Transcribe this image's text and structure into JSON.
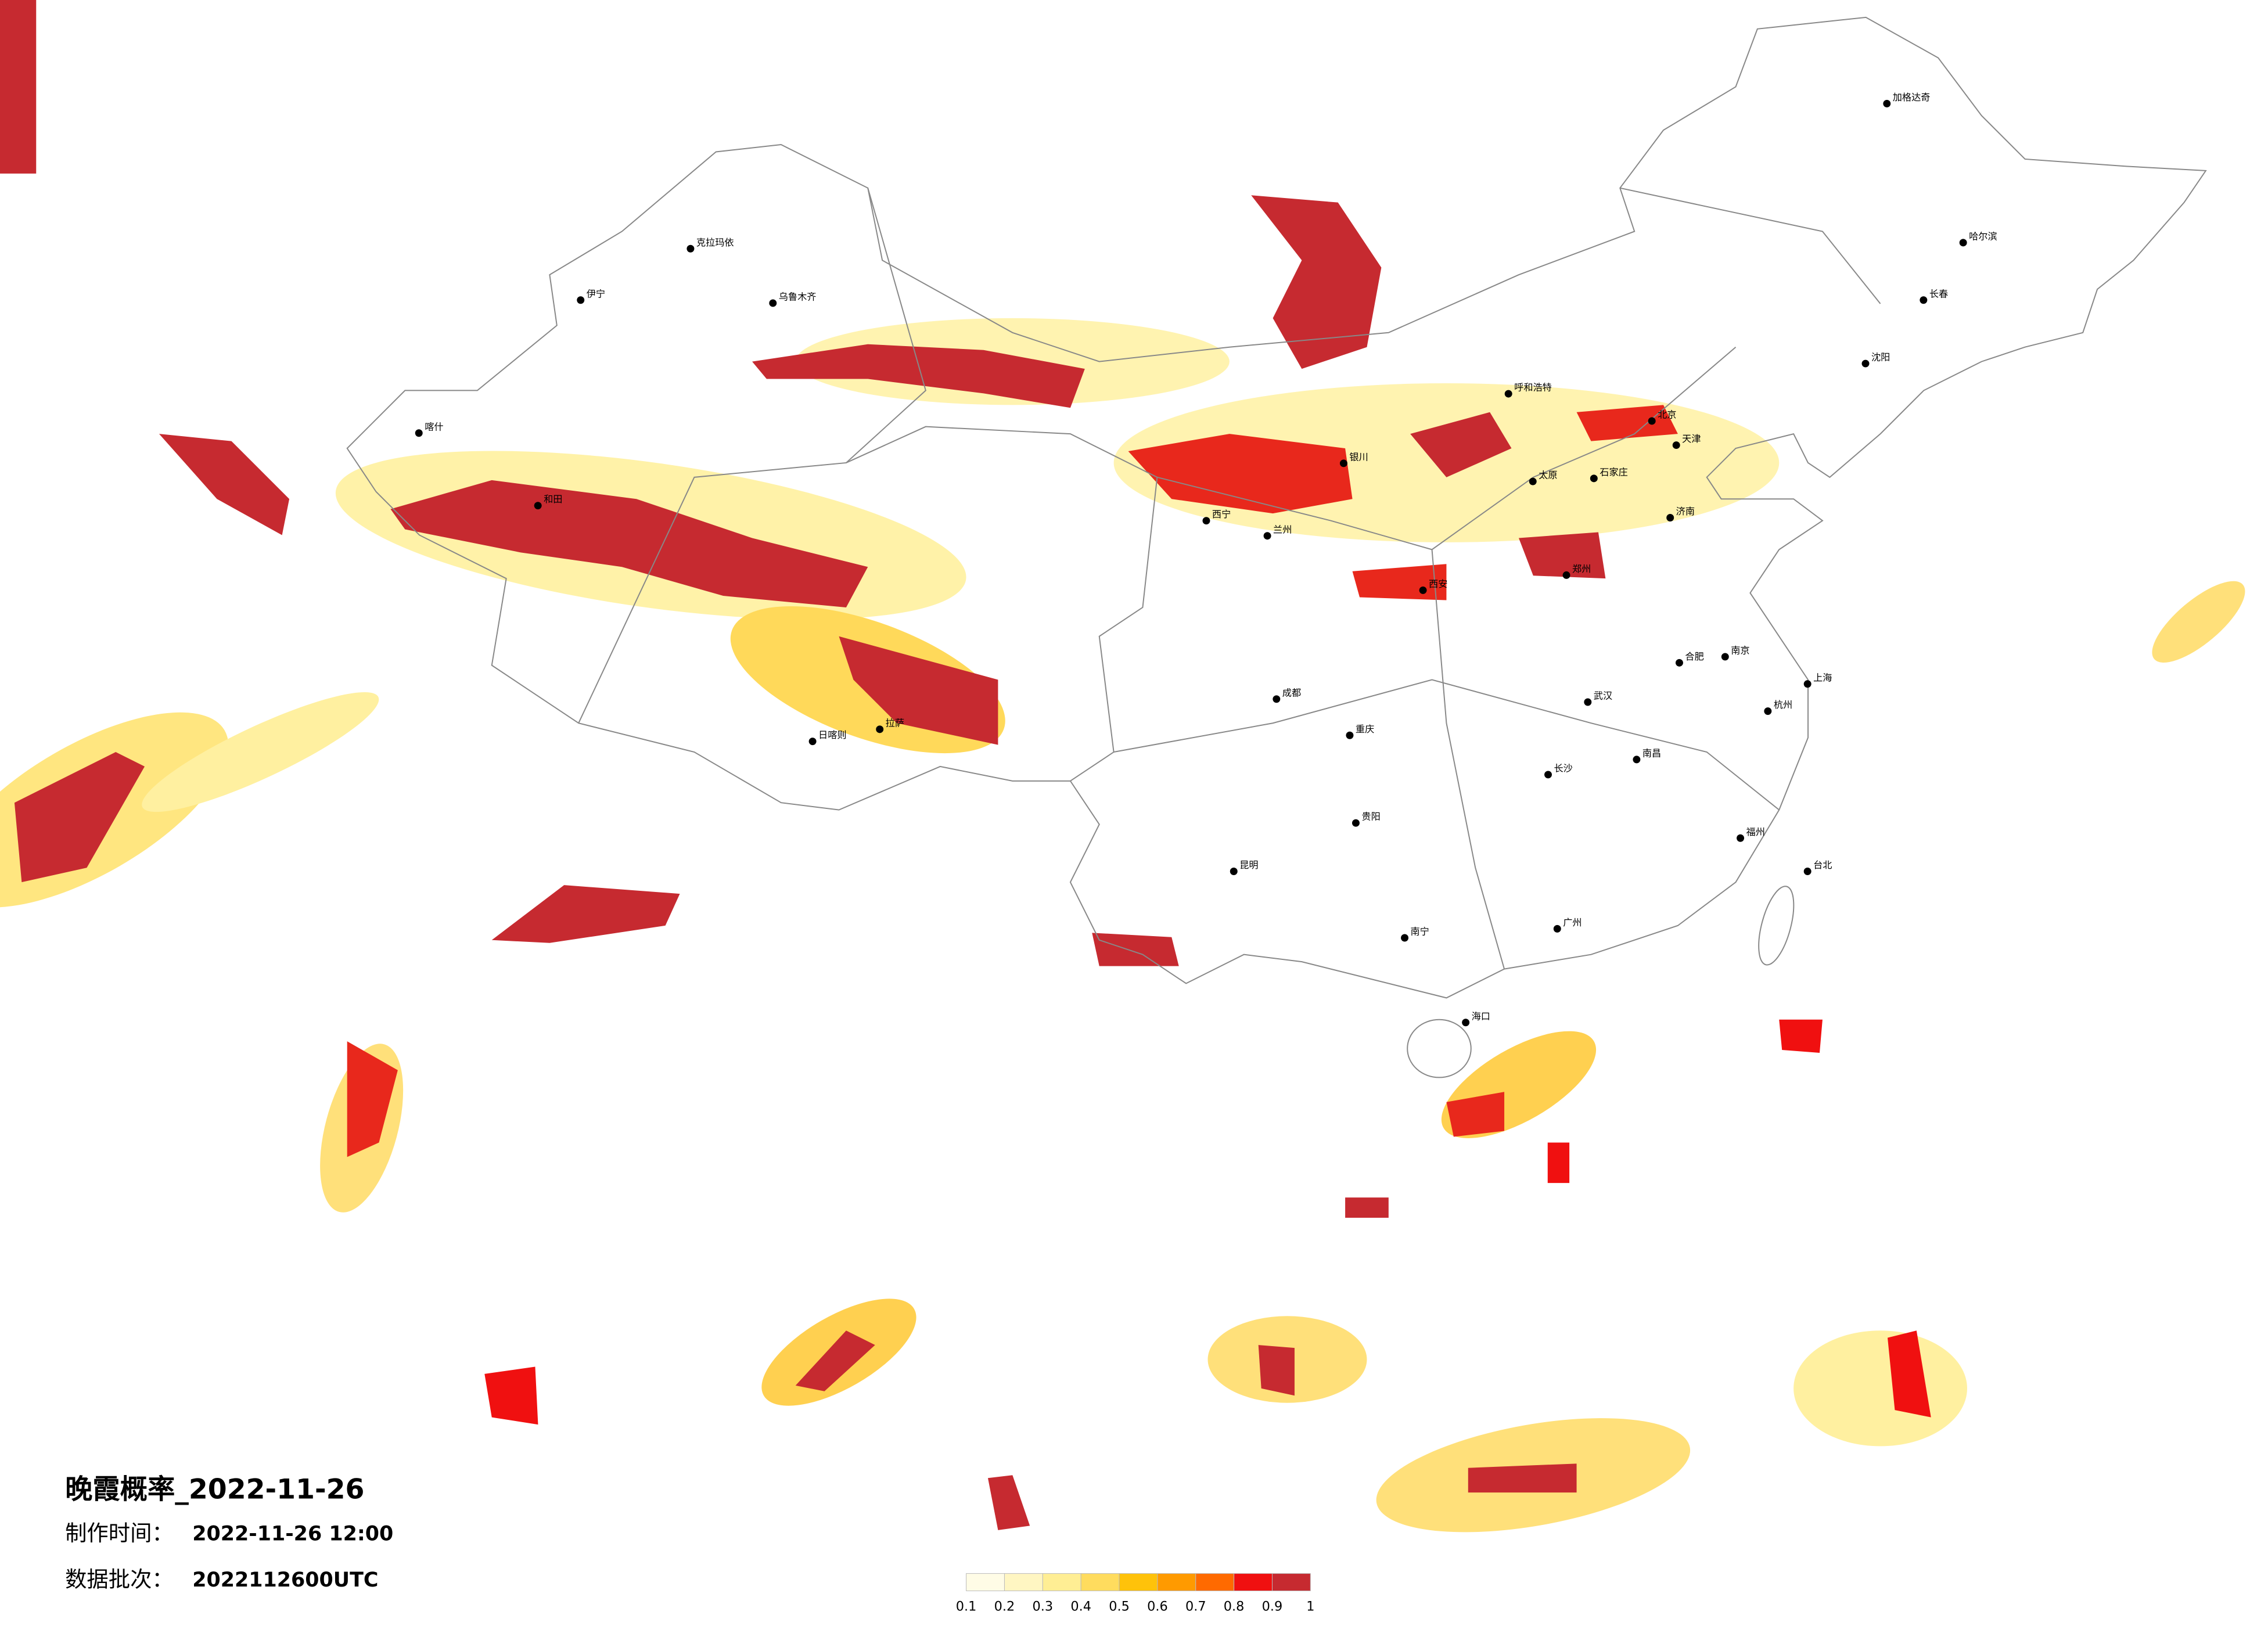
{
  "header": {
    "title": "晚霞概率_2022-11-26",
    "production_time_label": "制作时间：",
    "production_time": "2022-11-26 12:00",
    "batch_label": "数据批次：",
    "batch": "2022112600UTC"
  },
  "legend": {
    "ticks": [
      0.1,
      0.2,
      0.3,
      0.4,
      0.5,
      0.6,
      0.7,
      0.8,
      0.9,
      1
    ],
    "colors": [
      "#fffce6",
      "#fff6c2",
      "#ffee94",
      "#ffdc5e",
      "#ffc20a",
      "#ff9a00",
      "#ff6a00",
      "#f01010",
      "#c62a30"
    ]
  },
  "cities": [
    {
      "name": "乌鲁木齐",
      "lon": 87.6,
      "lat": 43.8
    },
    {
      "name": "克拉玛依",
      "lon": 84.9,
      "lat": 45.6
    },
    {
      "name": "伊宁",
      "lon": 81.3,
      "lat": 43.9
    },
    {
      "name": "喀什",
      "lon": 76.0,
      "lat": 39.5
    },
    {
      "name": "和田",
      "lon": 79.9,
      "lat": 37.1
    },
    {
      "name": "日喀则",
      "lon": 88.9,
      "lat": 29.3
    },
    {
      "name": "拉萨",
      "lon": 91.1,
      "lat": 29.7
    },
    {
      "name": "西宁",
      "lon": 101.8,
      "lat": 36.6
    },
    {
      "name": "兰州",
      "lon": 103.8,
      "lat": 36.1
    },
    {
      "name": "银川",
      "lon": 106.3,
      "lat": 38.5
    },
    {
      "name": "呼和浩特",
      "lon": 111.7,
      "lat": 40.8
    },
    {
      "name": "北京",
      "lon": 116.4,
      "lat": 39.9
    },
    {
      "name": "天津",
      "lon": 117.2,
      "lat": 39.1
    },
    {
      "name": "石家庄",
      "lon": 114.5,
      "lat": 38.0
    },
    {
      "name": "太原",
      "lon": 112.5,
      "lat": 37.9
    },
    {
      "name": "济南",
      "lon": 117.0,
      "lat": 36.7
    },
    {
      "name": "郑州",
      "lon": 113.6,
      "lat": 34.8
    },
    {
      "name": "西安",
      "lon": 108.9,
      "lat": 34.3
    },
    {
      "name": "成都",
      "lon": 104.1,
      "lat": 30.7
    },
    {
      "name": "重庆",
      "lon": 106.5,
      "lat": 29.5
    },
    {
      "name": "贵阳",
      "lon": 106.7,
      "lat": 26.6
    },
    {
      "name": "昆明",
      "lon": 102.7,
      "lat": 25.0
    },
    {
      "name": "南宁",
      "lon": 108.3,
      "lat": 22.8
    },
    {
      "name": "广州",
      "lon": 113.3,
      "lat": 23.1
    },
    {
      "name": "长沙",
      "lon": 113.0,
      "lat": 28.2
    },
    {
      "name": "武汉",
      "lon": 114.3,
      "lat": 30.6
    },
    {
      "name": "南昌",
      "lon": 115.9,
      "lat": 28.7
    },
    {
      "name": "合肥",
      "lon": 117.3,
      "lat": 31.9
    },
    {
      "name": "南京",
      "lon": 118.8,
      "lat": 32.1
    },
    {
      "name": "上海",
      "lon": 121.5,
      "lat": 31.2
    },
    {
      "name": "杭州",
      "lon": 120.2,
      "lat": 30.3
    },
    {
      "name": "福州",
      "lon": 119.3,
      "lat": 26.1
    },
    {
      "name": "台北",
      "lon": 121.5,
      "lat": 25.0
    },
    {
      "name": "海口",
      "lon": 110.3,
      "lat": 20.0
    },
    {
      "name": "沈阳",
      "lon": 123.4,
      "lat": 41.8
    },
    {
      "name": "长春",
      "lon": 125.3,
      "lat": 43.9
    },
    {
      "name": "哈尔滨",
      "lon": 126.6,
      "lat": 45.8
    },
    {
      "name": "加格达奇",
      "lon": 124.1,
      "lat": 50.4
    }
  ]
}
